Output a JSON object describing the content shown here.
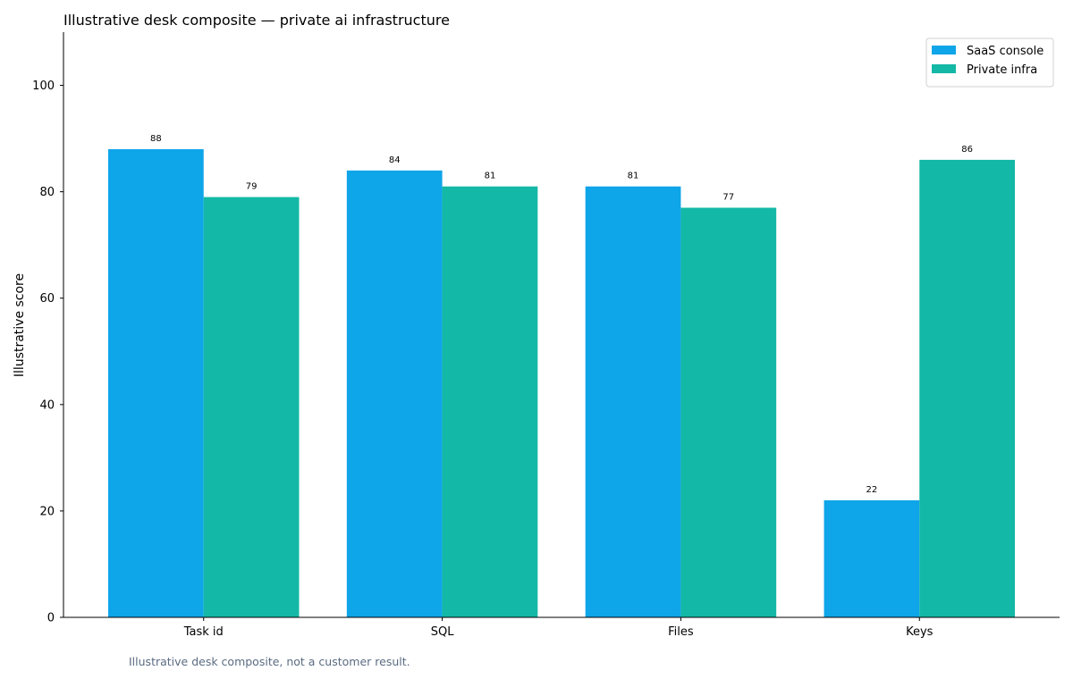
{
  "chart_data": {
    "type": "bar",
    "title": "Illustrative desk composite — private ai infrastructure",
    "xlabel": "",
    "ylabel": "Illustrative score",
    "categories": [
      "Task id",
      "SQL",
      "Files",
      "Keys"
    ],
    "series": [
      {
        "name": "SaaS console",
        "color": "#0ea5e9",
        "values": [
          88,
          84,
          81,
          22
        ]
      },
      {
        "name": "Private infra",
        "color": "#14b8a6",
        "values": [
          79,
          81,
          77,
          86
        ]
      }
    ],
    "ylim": [
      0,
      110
    ],
    "yticks": [
      0,
      20,
      40,
      60,
      80,
      100
    ],
    "grid": false,
    "legend_position": "top-right",
    "data_labels": true
  },
  "footnote": "Illustrative desk composite, not a customer result."
}
